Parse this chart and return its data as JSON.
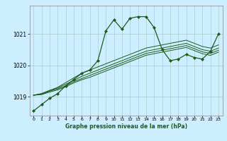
{
  "xlabel": "Graphe pression niveau de la mer (hPa)",
  "background_color": "#cceeff",
  "grid_color": "#aacccc",
  "line_color": "#1a5c1a",
  "ylim": [
    1018.4,
    1021.9
  ],
  "xlim": [
    -0.5,
    23.5
  ],
  "yticks": [
    1019,
    1020,
    1021
  ],
  "xticks": [
    0,
    1,
    2,
    3,
    4,
    5,
    6,
    7,
    8,
    9,
    10,
    11,
    12,
    13,
    14,
    15,
    16,
    17,
    18,
    19,
    20,
    21,
    22,
    23
  ],
  "series1": [
    1018.55,
    1018.75,
    1018.95,
    1019.1,
    1019.35,
    1019.55,
    1019.75,
    1019.85,
    1020.15,
    1021.1,
    1021.45,
    1021.15,
    1021.5,
    1021.55,
    1021.55,
    1021.2,
    1020.5,
    1020.15,
    1020.2,
    1020.35,
    1020.25,
    1020.2,
    1020.45,
    1021.0
  ],
  "series2": [
    1019.05,
    1019.1,
    1019.2,
    1019.3,
    1019.45,
    1019.6,
    1019.75,
    1019.85,
    1019.95,
    1020.05,
    1020.15,
    1020.25,
    1020.35,
    1020.45,
    1020.55,
    1020.6,
    1020.65,
    1020.7,
    1020.75,
    1020.8,
    1020.7,
    1020.6,
    1020.55,
    1020.65
  ],
  "series3": [
    1019.05,
    1019.1,
    1019.2,
    1019.28,
    1019.4,
    1019.52,
    1019.65,
    1019.75,
    1019.85,
    1019.95,
    1020.05,
    1020.15,
    1020.25,
    1020.35,
    1020.45,
    1020.5,
    1020.55,
    1020.6,
    1020.65,
    1020.7,
    1020.6,
    1020.5,
    1020.45,
    1020.55
  ],
  "series4": [
    1019.05,
    1019.08,
    1019.18,
    1019.25,
    1019.35,
    1019.48,
    1019.58,
    1019.68,
    1019.78,
    1019.88,
    1019.98,
    1020.08,
    1020.18,
    1020.28,
    1020.38,
    1020.43,
    1020.48,
    1020.53,
    1020.58,
    1020.63,
    1020.53,
    1020.43,
    1020.38,
    1020.48
  ],
  "series5": [
    1019.05,
    1019.07,
    1019.15,
    1019.22,
    1019.32,
    1019.44,
    1019.54,
    1019.62,
    1019.72,
    1019.82,
    1019.92,
    1020.02,
    1020.12,
    1020.22,
    1020.32,
    1020.37,
    1020.42,
    1020.47,
    1020.52,
    1020.57,
    1020.47,
    1020.37,
    1020.32,
    1020.42
  ]
}
